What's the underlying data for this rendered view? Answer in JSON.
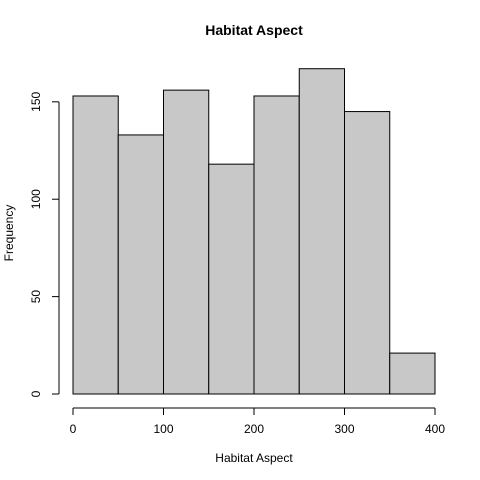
{
  "chart_data": {
    "type": "bar",
    "title": "Habitat Aspect",
    "xlabel": "Habitat Aspect",
    "ylabel": "Frequency",
    "bins": [
      {
        "start": 0,
        "end": 50,
        "value": 153
      },
      {
        "start": 50,
        "end": 100,
        "value": 133
      },
      {
        "start": 100,
        "end": 150,
        "value": 156
      },
      {
        "start": 150,
        "end": 200,
        "value": 118
      },
      {
        "start": 200,
        "end": 250,
        "value": 153
      },
      {
        "start": 250,
        "end": 300,
        "value": 167
      },
      {
        "start": 300,
        "end": 350,
        "value": 145
      },
      {
        "start": 350,
        "end": 400,
        "value": 21
      }
    ],
    "xlim": [
      0,
      400
    ],
    "ylim": [
      0,
      172.5
    ],
    "xticks": [
      0,
      100,
      200,
      300,
      400
    ],
    "yticks": [
      0,
      50,
      100,
      150
    ],
    "bar_color": "#c8c8c8",
    "grid": false
  }
}
